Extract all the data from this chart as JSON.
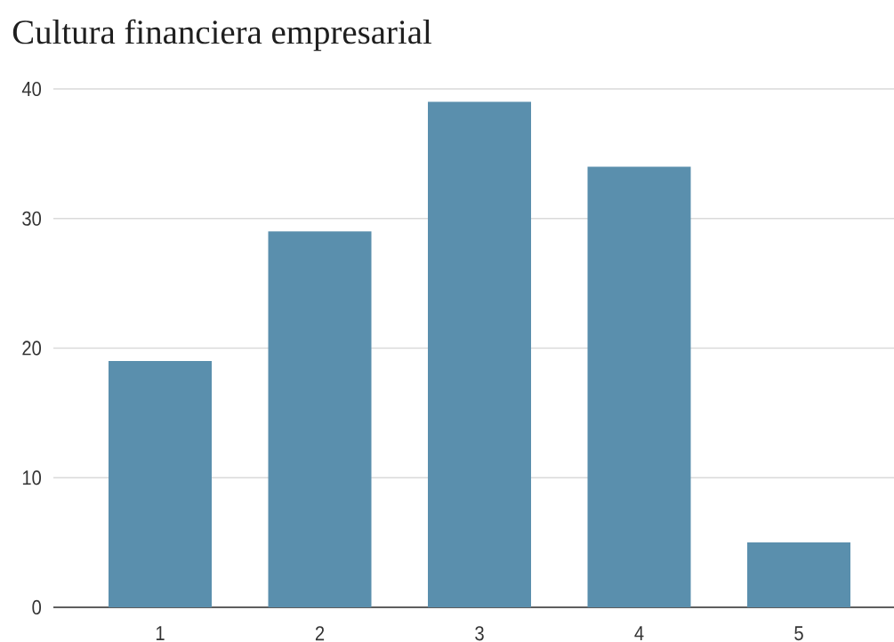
{
  "chart_data": {
    "type": "bar",
    "title": "Cultura financiera empresarial",
    "categories": [
      "1",
      "2",
      "3",
      "4",
      "5"
    ],
    "values": [
      19,
      29,
      39,
      34,
      5
    ],
    "color": "#5a8fad",
    "ylim": [
      0,
      40
    ],
    "yticks": [
      0,
      10,
      20,
      30,
      40
    ],
    "grid": "y"
  }
}
